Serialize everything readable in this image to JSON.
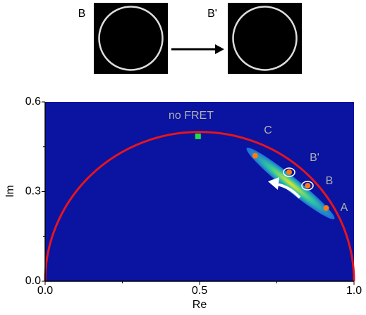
{
  "chart_data": {
    "type": "scatter",
    "x_label": "Re",
    "y_label": "Im",
    "xlim": [
      0,
      1
    ],
    "ylim": [
      0,
      0.6
    ],
    "xticks": [
      {
        "value": 0,
        "label": "0.0"
      },
      {
        "value": 0.5,
        "label": "0.5"
      },
      {
        "value": 1,
        "label": "1.0"
      }
    ],
    "yticks": [
      {
        "value": 0,
        "label": "0.0"
      },
      {
        "value": 0.3,
        "label": "0.3"
      },
      {
        "value": 0.6,
        "label": "0.6"
      }
    ],
    "xminor": [
      0.25,
      0.75
    ],
    "yminor": [
      0.15,
      0.45
    ],
    "background": "#0a14a0",
    "semicircle_color": "#e8141c",
    "series": [
      {
        "color": "#22dd44",
        "x": [
          0.495
        ],
        "y": [
          0.485
        ]
      },
      {
        "color": "#ff7a10",
        "x": [
          0.68,
          0.79,
          0.85,
          0.91
        ],
        "y": [
          0.42,
          0.365,
          0.32,
          0.245
        ]
      }
    ],
    "annotations": [
      "no FRET",
      "C",
      "B'",
      "B",
      "A"
    ],
    "image_labels": [
      "B",
      "B'"
    ]
  }
}
